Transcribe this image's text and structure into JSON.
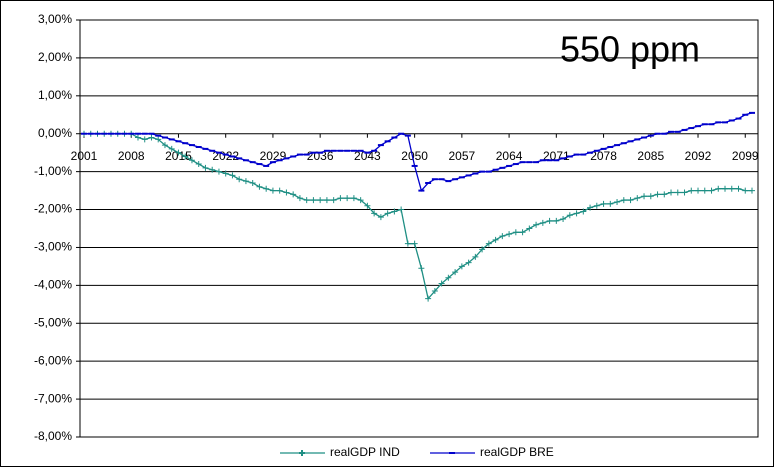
{
  "chart_data": {
    "type": "line",
    "annotation": "550 ppm",
    "x": [
      2001,
      2002,
      2003,
      2004,
      2005,
      2006,
      2007,
      2008,
      2009,
      2010,
      2011,
      2012,
      2013,
      2014,
      2015,
      2016,
      2017,
      2018,
      2019,
      2020,
      2021,
      2022,
      2023,
      2024,
      2025,
      2026,
      2027,
      2028,
      2029,
      2030,
      2031,
      2032,
      2033,
      2034,
      2035,
      2036,
      2037,
      2038,
      2039,
      2040,
      2041,
      2042,
      2043,
      2044,
      2045,
      2046,
      2047,
      2048,
      2049,
      2050,
      2051,
      2052,
      2053,
      2054,
      2055,
      2056,
      2057,
      2058,
      2059,
      2060,
      2061,
      2062,
      2063,
      2064,
      2065,
      2066,
      2067,
      2068,
      2069,
      2070,
      2071,
      2072,
      2073,
      2074,
      2075,
      2076,
      2077,
      2078,
      2079,
      2080,
      2081,
      2082,
      2083,
      2084,
      2085,
      2086,
      2087,
      2088,
      2089,
      2090,
      2091,
      2092,
      2093,
      2094,
      2095,
      2096,
      2097,
      2098,
      2099,
      2100
    ],
    "series": [
      {
        "name": "realGDP IND",
        "color": "#1f8f84",
        "marker": "cross",
        "values": [
          0,
          0,
          0,
          0,
          0,
          0,
          0,
          0,
          -0.1,
          -0.15,
          -0.1,
          -0.15,
          -0.3,
          -0.4,
          -0.5,
          -0.6,
          -0.7,
          -0.8,
          -0.9,
          -0.95,
          -1,
          -1.05,
          -1.1,
          -1.2,
          -1.25,
          -1.3,
          -1.4,
          -1.45,
          -1.5,
          -1.5,
          -1.55,
          -1.6,
          -1.7,
          -1.75,
          -1.75,
          -1.75,
          -1.75,
          -1.75,
          -1.7,
          -1.7,
          -1.7,
          -1.75,
          -1.9,
          -2.1,
          -2.2,
          -2.1,
          -2.05,
          -2,
          -2.9,
          -2.9,
          -3.55,
          -4.35,
          -4.15,
          -3.95,
          -3.8,
          -3.65,
          -3.5,
          -3.4,
          -3.25,
          -3.05,
          -2.9,
          -2.8,
          -2.7,
          -2.65,
          -2.6,
          -2.6,
          -2.5,
          -2.4,
          -2.35,
          -2.3,
          -2.3,
          -2.25,
          -2.15,
          -2.1,
          -2.05,
          -1.95,
          -1.9,
          -1.85,
          -1.85,
          -1.8,
          -1.75,
          -1.75,
          -1.7,
          -1.65,
          -1.65,
          -1.6,
          -1.6,
          -1.55,
          -1.55,
          -1.55,
          -1.5,
          -1.5,
          -1.5,
          -1.5,
          -1.45,
          -1.45,
          -1.45,
          -1.45,
          -1.5,
          -1.5
        ]
      },
      {
        "name": "realGDP BRE",
        "color": "#0000cc",
        "marker": "dash",
        "values": [
          0,
          0,
          0,
          0,
          0,
          0,
          0,
          0,
          0,
          0,
          0,
          -0.05,
          -0.1,
          -0.15,
          -0.2,
          -0.25,
          -0.3,
          -0.35,
          -0.4,
          -0.45,
          -0.5,
          -0.55,
          -0.6,
          -0.65,
          -0.7,
          -0.75,
          -0.8,
          -0.85,
          -0.75,
          -0.7,
          -0.65,
          -0.6,
          -0.55,
          -0.55,
          -0.5,
          -0.5,
          -0.45,
          -0.45,
          -0.45,
          -0.45,
          -0.45,
          -0.45,
          -0.5,
          -0.45,
          -0.3,
          -0.2,
          -0.1,
          0,
          -0.05,
          -0.85,
          -1.5,
          -1.3,
          -1.2,
          -1.2,
          -1.25,
          -1.2,
          -1.15,
          -1.1,
          -1.05,
          -1,
          -1,
          -0.95,
          -0.9,
          -0.85,
          -0.8,
          -0.75,
          -0.75,
          -0.75,
          -0.7,
          -0.7,
          -0.7,
          -0.65,
          -0.6,
          -0.55,
          -0.55,
          -0.5,
          -0.45,
          -0.4,
          -0.35,
          -0.3,
          -0.25,
          -0.2,
          -0.15,
          -0.1,
          -0.05,
          0,
          0,
          0.05,
          0.05,
          0.1,
          0.15,
          0.2,
          0.25,
          0.25,
          0.3,
          0.3,
          0.35,
          0.4,
          0.5,
          0.55
        ]
      }
    ],
    "xlim": [
      2001,
      2100
    ],
    "xticks": [
      2001,
      2008,
      2015,
      2022,
      2029,
      2036,
      2043,
      2050,
      2057,
      2064,
      2071,
      2078,
      2085,
      2092,
      2099
    ],
    "ylim": [
      -8,
      3
    ],
    "yticks": [
      {
        "value": -8,
        "label": "-8,00%"
      },
      {
        "value": -7,
        "label": "-7,00%"
      },
      {
        "value": -6,
        "label": "-6,00%"
      },
      {
        "value": -5,
        "label": "-5,00%"
      },
      {
        "value": -4,
        "label": "-4,00%"
      },
      {
        "value": -3,
        "label": "-3,00%"
      },
      {
        "value": -2,
        "label": "-2,00%"
      },
      {
        "value": -1,
        "label": "-1,00%"
      },
      {
        "value": 0,
        "label": "0,00%"
      },
      {
        "value": 1,
        "label": "1,00%"
      },
      {
        "value": 2,
        "label": "2,00%"
      },
      {
        "value": 3,
        "label": "3,00%"
      }
    ],
    "grid": true
  }
}
